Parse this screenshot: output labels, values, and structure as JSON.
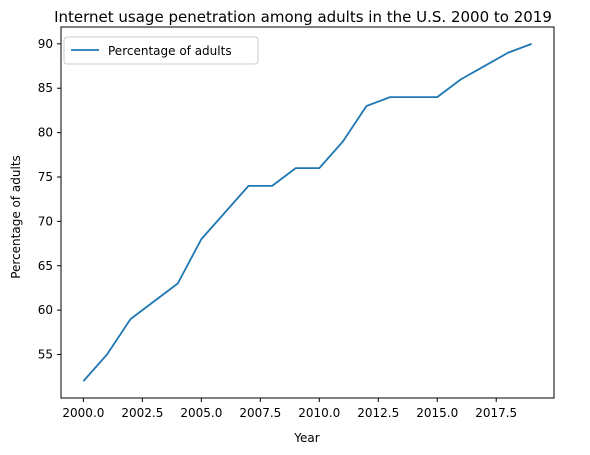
{
  "chart_data": {
    "type": "line",
    "title": "Internet usage penetration among adults in the U.S. 2000 to 2019",
    "xlabel": "Year",
    "ylabel": "Percentage of adults",
    "x": [
      2000,
      2001,
      2002,
      2003,
      2004,
      2005,
      2006,
      2007,
      2008,
      2009,
      2010,
      2011,
      2012,
      2013,
      2014,
      2015,
      2016,
      2017,
      2018,
      2019
    ],
    "series": [
      {
        "name": "Percentage of adults",
        "color": "#1f77b4",
        "values": [
          52,
          55,
          59,
          61,
          63,
          68,
          71,
          74,
          74,
          76,
          76,
          79,
          83,
          84,
          84,
          84,
          86,
          87.5,
          89,
          90
        ]
      }
    ],
    "xlim": [
      1999.05,
      2019.95
    ],
    "ylim": [
      50.1,
      91.9
    ],
    "xticks": [
      2000.0,
      2002.5,
      2005.0,
      2007.5,
      2010.0,
      2012.5,
      2015.0,
      2017.5
    ],
    "xtick_labels": [
      "2000.0",
      "2002.5",
      "2005.0",
      "2007.5",
      "2010.0",
      "2012.5",
      "2015.0",
      "2017.5"
    ],
    "yticks": [
      55,
      60,
      65,
      70,
      75,
      80,
      85,
      90
    ],
    "ytick_labels": [
      "55",
      "60",
      "65",
      "70",
      "75",
      "80",
      "85",
      "90"
    ],
    "grid": false,
    "legend_position": "top-left"
  }
}
